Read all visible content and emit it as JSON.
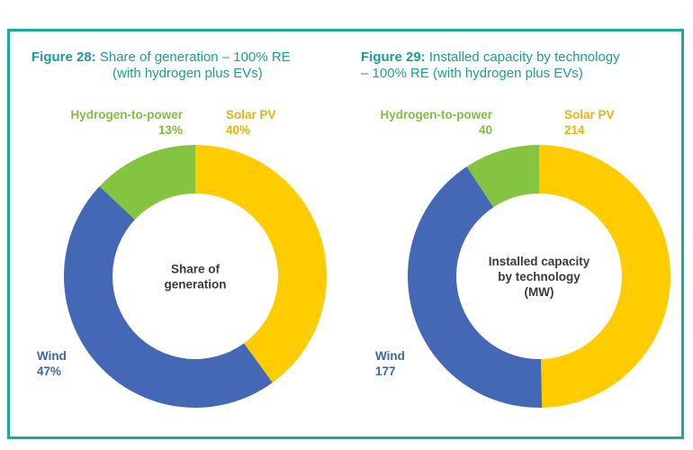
{
  "colors": {
    "frame": "#1bab9a",
    "title": "#1b9e92",
    "solar": "#ffcc00",
    "wind": "#4468b5",
    "hydrogen": "#85c441"
  },
  "chart_data": [
    {
      "type": "pie",
      "figure_label": "Figure 28:",
      "title_line1": "Share of generation – 100% RE",
      "title_line2": "(with hydrogen plus EVs)",
      "center_lines": [
        "Share of",
        "generation"
      ],
      "categories": [
        "Solar PV",
        "Wind",
        "Hydrogen-to-power"
      ],
      "values": [
        40,
        47,
        13
      ],
      "value_labels": [
        "40%",
        "47%",
        "13%"
      ]
    },
    {
      "type": "pie",
      "figure_label": "Figure 29:",
      "title_line1": "Installed capacity by technology",
      "title_line2": "– 100% RE (with hydrogen plus EVs)",
      "center_lines": [
        "Installed capacity",
        "by technology",
        "(MW)"
      ],
      "categories": [
        "Solar PV",
        "Wind",
        "Hydrogen-to-power"
      ],
      "values": [
        214,
        177,
        40
      ],
      "value_labels": [
        "214",
        "177",
        "40"
      ]
    }
  ]
}
